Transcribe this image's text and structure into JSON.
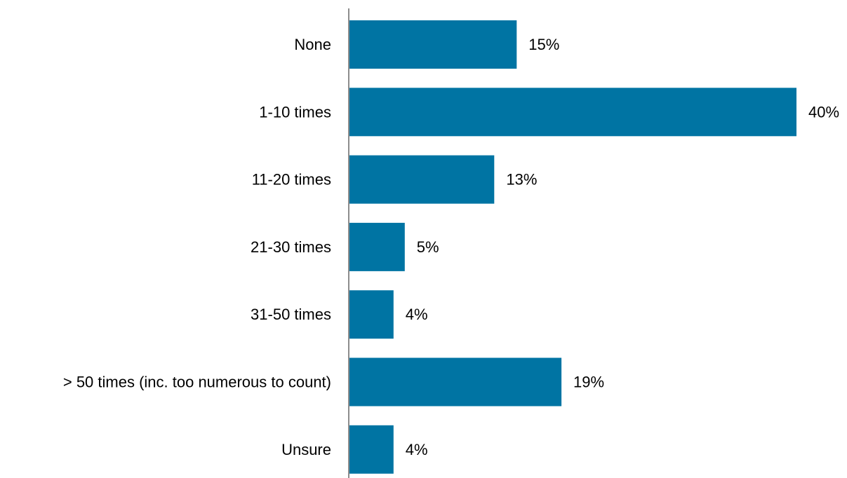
{
  "chart_data": {
    "type": "bar",
    "orientation": "horizontal",
    "categories": [
      "None",
      "1-10 times",
      "11-20 times",
      "21-30 times",
      "31-50 times",
      "> 50 times (inc. too numerous to count)",
      "Unsure"
    ],
    "values": [
      15,
      40,
      13,
      5,
      4,
      19,
      4
    ],
    "value_labels": [
      "15%",
      "40%",
      "13%",
      "5%",
      "4%",
      "19%",
      "4%"
    ],
    "value_unit": "%",
    "title": "",
    "xlabel": "",
    "ylabel": "",
    "xlim": [
      0,
      40
    ],
    "grid": false,
    "legend": "none",
    "bar_color": "#0074A3",
    "axis_color": "#8C8C8C"
  }
}
